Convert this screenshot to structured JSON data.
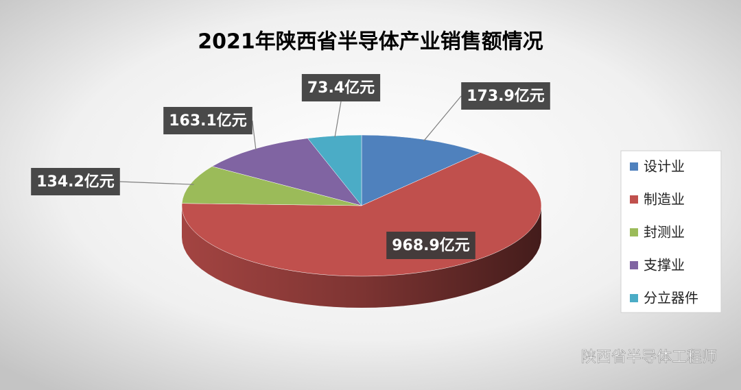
{
  "chart_data": {
    "type": "pie",
    "title": "2021年陕西省半导体产业销售额情况",
    "categories": [
      "设计业",
      "制造业",
      "封测业",
      "支撑业",
      "分立器件"
    ],
    "values": [
      173.9,
      968.9,
      134.2,
      163.1,
      73.4
    ],
    "value_labels": [
      "173.9亿元",
      "968.9亿元",
      "134.2亿元",
      "163.1亿元",
      "73.4亿元"
    ],
    "colors": [
      "#4f81bd",
      "#c0504d",
      "#9bbb59",
      "#8064a2",
      "#4bacc6"
    ],
    "legend": "right",
    "watermark": "陕西省半导体工程师"
  }
}
